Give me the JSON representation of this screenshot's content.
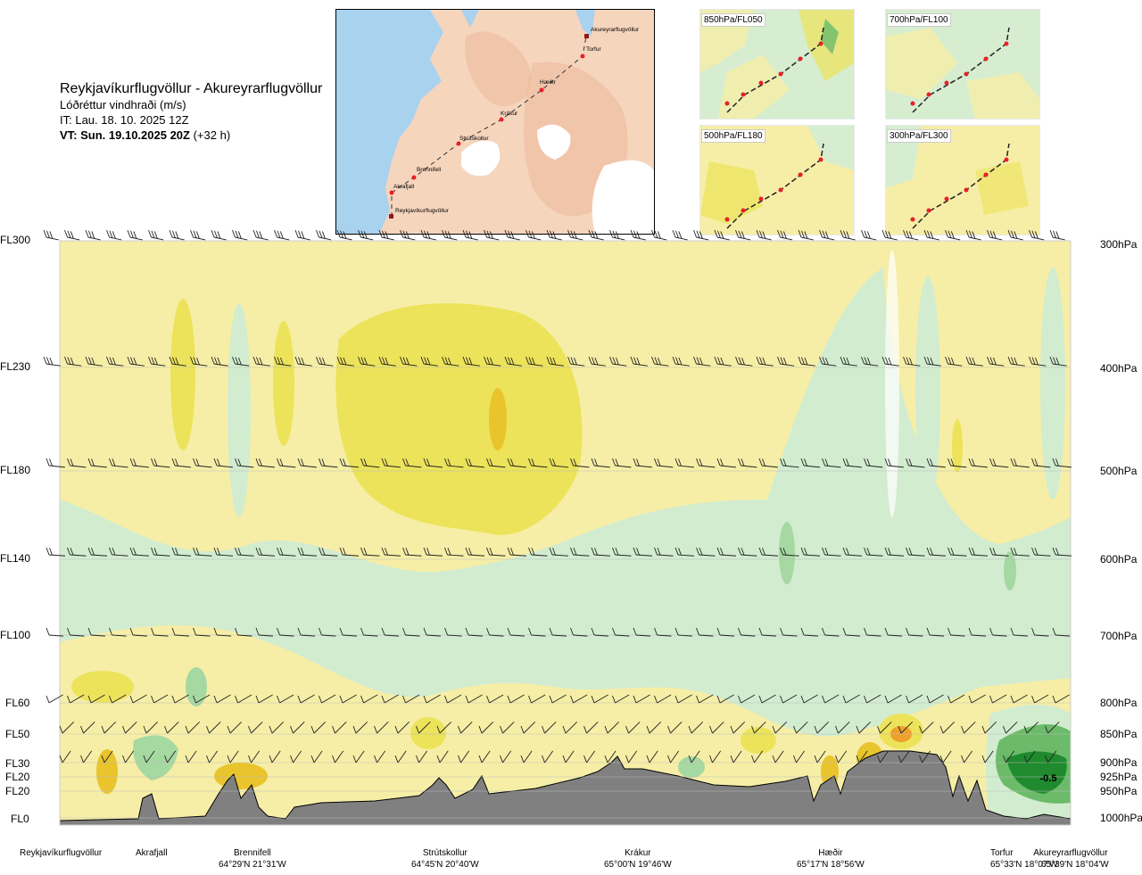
{
  "title": {
    "route": "Reykjavíkurflugvöllur - Akureyrarflugvöllur",
    "parameter": "Lóðréttur vindhraði (m/s)",
    "initial_time": "IT: Lau. 18. 10. 2025 12Z",
    "valid_time_label": "VT: Sun. 19.10.2025 20Z",
    "valid_time_offset": "(+32 h)"
  },
  "route_map": {
    "waypoints": [
      "Akureyrarflugvöllur",
      "Torfur",
      "Hæðir",
      "Krákur",
      "Strútskollur",
      "Brennifell",
      "Akrafjall",
      "Reykjavíkurflugvöllur"
    ],
    "colors": {
      "land": "#f6d5bd",
      "sea": "#a9d2ef",
      "glacier": "#ffffff",
      "route": "#333333",
      "point": "#e8202a"
    }
  },
  "level_panels": [
    {
      "label": "850hPa/FL050"
    },
    {
      "label": "700hPa/FL100"
    },
    {
      "label": "500hPa/FL180"
    },
    {
      "label": "300hPa/FL300"
    }
  ],
  "chart_data": {
    "type": "heatmap",
    "description_units": "m/s",
    "left_axis_flight_levels": [
      "FL300",
      "FL230",
      "FL180",
      "FL140",
      "FL100",
      "FL60",
      "FL50",
      "FL30",
      "FL20",
      "FL20",
      "FL0"
    ],
    "right_axis_pressure_levels": [
      "300hPa",
      "400hPa",
      "500hPa",
      "600hPa",
      "700hPa",
      "800hPa",
      "850hPa",
      "900hPa",
      "925hPa",
      "950hPa",
      "1000hPa"
    ],
    "locations": [
      {
        "name": "Reykjavíkurflugvöllur",
        "coords": ""
      },
      {
        "name": "Akrafjall",
        "coords": ""
      },
      {
        "name": "Brennifell",
        "coords": "64°29'N 21°31'W"
      },
      {
        "name": "Strútskollur",
        "coords": "64°45'N 20°40'W"
      },
      {
        "name": "Krákur",
        "coords": "65°00'N 19°46'W"
      },
      {
        "name": "Hæðir",
        "coords": "65°17'N 18°56'W"
      },
      {
        "name": "Torfur",
        "coords": "65°33'N 18°07'W"
      },
      {
        "name": "Akureyrarflugvöllur",
        "coords": "65°39'N 18°04'W"
      }
    ],
    "annotation": "-0.5",
    "colors": {
      "strong_down": "#1f8a2e",
      "down": "#6cbb6a",
      "weak_down": "#a6d8a2",
      "slight_down": "#d2ecd0",
      "near_zero_down": "#e8f6e6",
      "near_zero_up": "#fbf8cf",
      "slight_up": "#f6eea6",
      "up": "#ece35a",
      "strong_up": "#e9c42c",
      "stronger_up": "#eea02a",
      "terrain": "#808080"
    }
  }
}
